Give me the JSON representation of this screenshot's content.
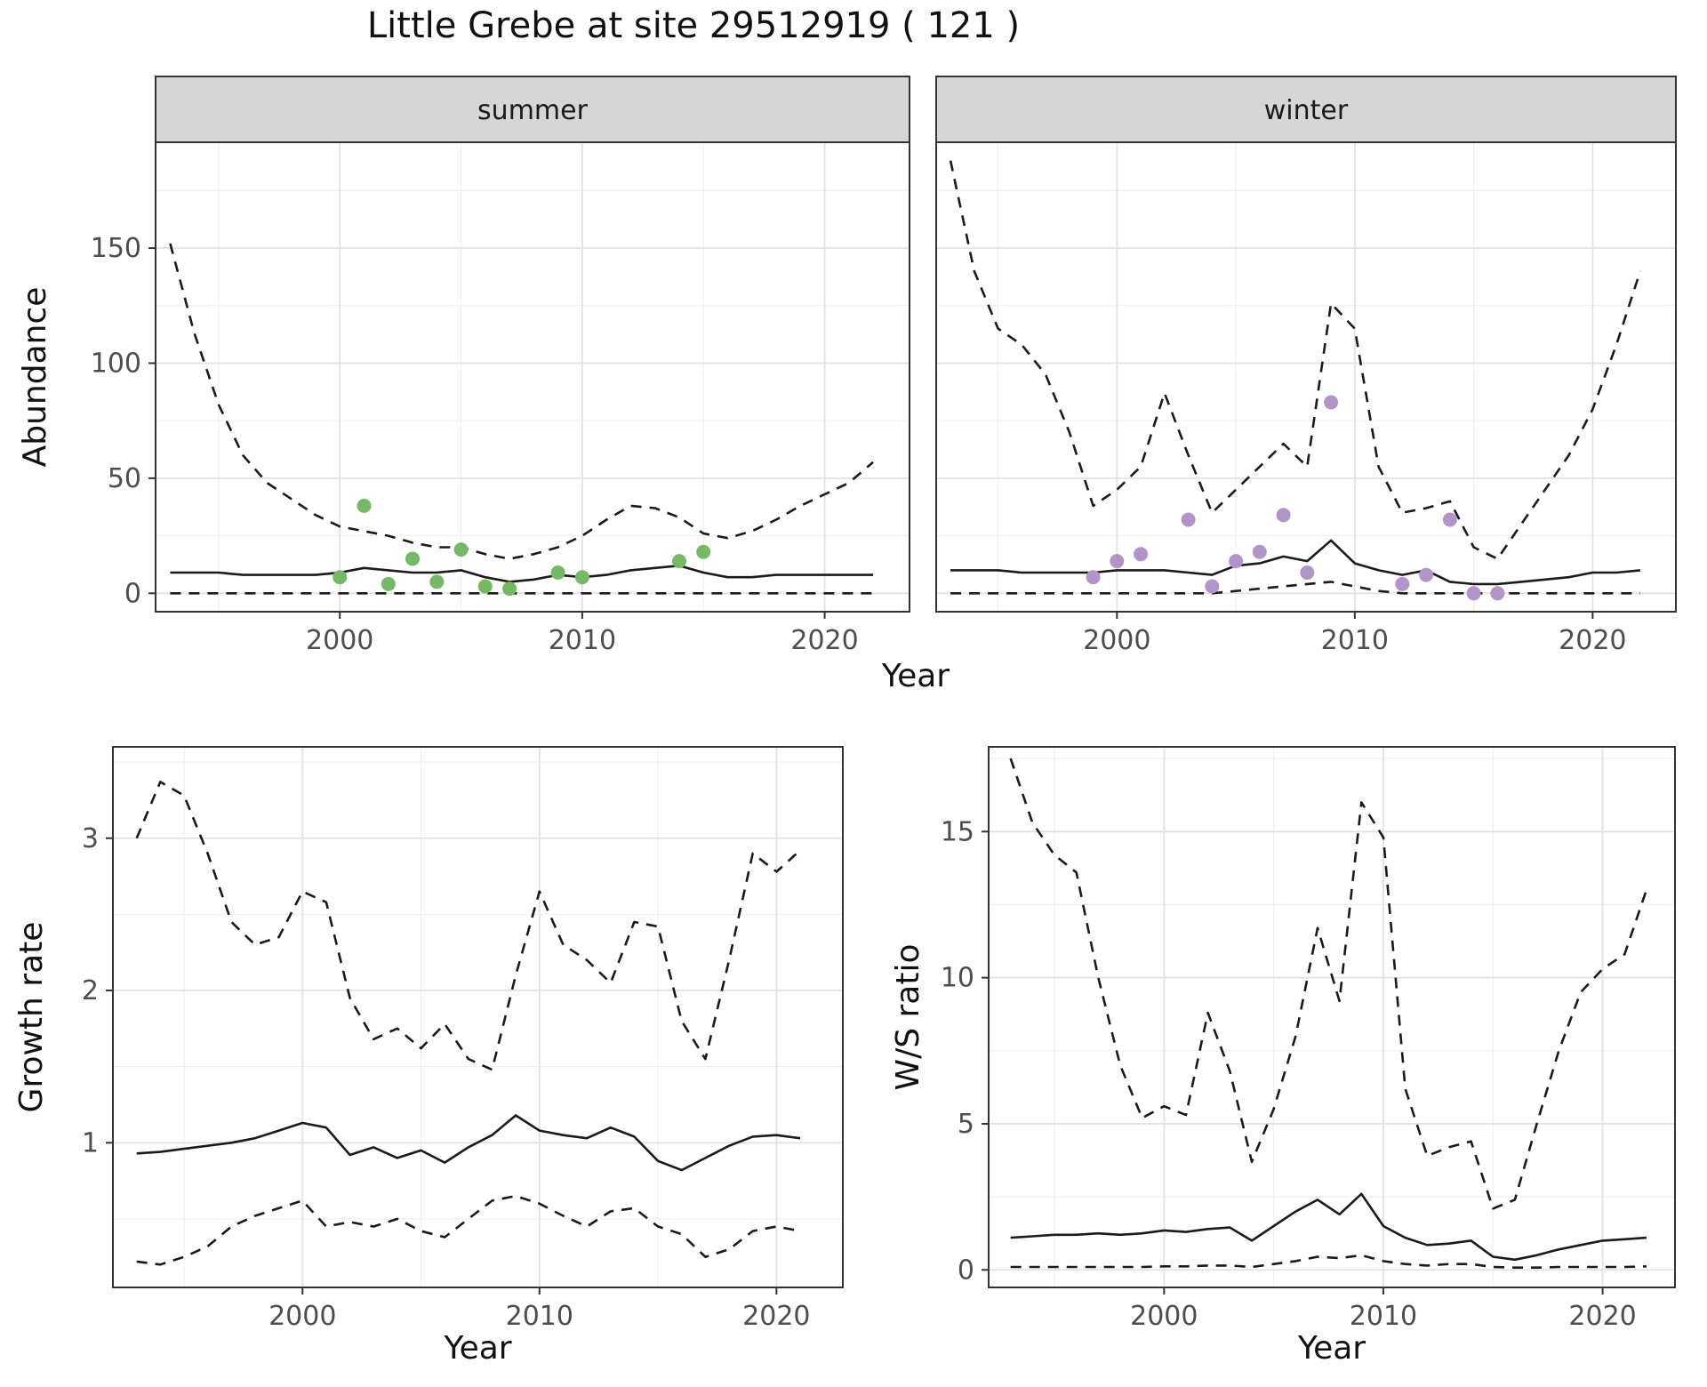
{
  "title": "Little Grebe at site 29512919 ( 121 )",
  "colors": {
    "line": "#1a1a1a",
    "grid_major": "#e2e2e2",
    "grid_minor": "#f0f0f0",
    "border": "#333333",
    "tick_text": "#4d4d4d",
    "strip_bg": "#d6d6d6",
    "strip_text": "#1a1a1a",
    "summer_points": "#76b965",
    "winter_points": "#b294c9"
  },
  "chart_data": [
    {
      "id": "summer",
      "type": "line",
      "facet_label": "summer",
      "xlabel": "Year",
      "ylabel": "Abundance",
      "xlim": [
        1992.4,
        2023.5
      ],
      "ylim": [
        -8,
        196
      ],
      "xticks": [
        2000,
        2010,
        2020
      ],
      "xtick_minor": [
        1995,
        2005,
        2015
      ],
      "yticks": [
        0,
        50,
        100,
        150
      ],
      "ytick_minor": [
        25,
        75,
        125,
        175
      ],
      "grid": true,
      "legend": "none",
      "x": [
        1993,
        1994,
        1995,
        1996,
        1997,
        1998,
        1999,
        2000,
        2001,
        2002,
        2003,
        2004,
        2005,
        2006,
        2007,
        2008,
        2009,
        2010,
        2011,
        2012,
        2013,
        2014,
        2015,
        2016,
        2017,
        2018,
        2019,
        2020,
        2021,
        2022
      ],
      "series": [
        {
          "name": "upper-ci",
          "style": "dashed",
          "values": [
            152,
            113,
            82,
            60,
            48,
            41,
            34,
            29,
            27,
            25,
            22,
            20,
            20,
            17,
            15,
            17,
            20,
            25,
            32,
            38,
            37,
            33,
            26,
            24,
            27,
            32,
            38,
            43,
            48,
            57
          ]
        },
        {
          "name": "median",
          "style": "solid",
          "values": [
            9,
            9,
            9,
            8,
            8,
            8,
            8,
            9,
            11,
            10,
            9,
            9,
            10,
            7,
            5,
            6,
            8,
            7,
            8,
            10,
            11,
            12,
            9,
            7,
            7,
            8,
            8,
            8,
            8,
            8
          ]
        },
        {
          "name": "lower-ci",
          "style": "dashed",
          "values": [
            0,
            0,
            0,
            0,
            0,
            0,
            0,
            0,
            0,
            0,
            0,
            0,
            0,
            0,
            0,
            0,
            0,
            0,
            0,
            0,
            0,
            0,
            0,
            0,
            0,
            0,
            0,
            0,
            0,
            0
          ]
        }
      ],
      "points": {
        "name": "observed-counts",
        "color_key": "summer_points",
        "x": [
          2000,
          2001,
          2002,
          2003,
          2004,
          2005,
          2006,
          2007,
          2009,
          2010,
          2014,
          2015
        ],
        "y": [
          7,
          38,
          4,
          15,
          5,
          19,
          3,
          2,
          9,
          7,
          14,
          18
        ]
      }
    },
    {
      "id": "winter",
      "type": "line",
      "facet_label": "winter",
      "xlabel": "Year",
      "ylabel": "Abundance",
      "xlim": [
        1992.4,
        2023.5
      ],
      "ylim": [
        -8,
        196
      ],
      "xticks": [
        2000,
        2010,
        2020
      ],
      "xtick_minor": [
        1995,
        2005,
        2015
      ],
      "yticks": [
        0,
        50,
        100,
        150
      ],
      "ytick_minor": [
        25,
        75,
        125,
        175
      ],
      "grid": true,
      "legend": "none",
      "x": [
        1993,
        1994,
        1995,
        1996,
        1997,
        1998,
        1999,
        2000,
        2001,
        2002,
        2003,
        2004,
        2005,
        2006,
        2007,
        2008,
        2009,
        2010,
        2011,
        2012,
        2013,
        2014,
        2015,
        2016,
        2017,
        2018,
        2019,
        2020,
        2021,
        2022
      ],
      "series": [
        {
          "name": "upper-ci",
          "style": "dashed",
          "values": [
            188,
            140,
            115,
            108,
            95,
            70,
            38,
            45,
            55,
            87,
            60,
            35,
            45,
            55,
            65,
            55,
            126,
            115,
            55,
            35,
            37,
            40,
            20,
            15,
            30,
            45,
            60,
            80,
            108,
            140
          ]
        },
        {
          "name": "median",
          "style": "solid",
          "values": [
            10,
            10,
            10,
            9,
            9,
            9,
            9,
            10,
            10,
            10,
            9,
            8,
            12,
            13,
            16,
            14,
            23,
            13,
            10,
            8,
            10,
            5,
            4,
            4,
            5,
            6,
            7,
            9,
            9,
            10
          ]
        },
        {
          "name": "lower-ci",
          "style": "dashed",
          "values": [
            0,
            0,
            0,
            0,
            0,
            0,
            0,
            0,
            0,
            0,
            0,
            0,
            1,
            2,
            3,
            4,
            5,
            3,
            1,
            0,
            0,
            0,
            0,
            0,
            0,
            0,
            0,
            0,
            0,
            0
          ]
        }
      ],
      "points": {
        "name": "observed-counts",
        "color_key": "winter_points",
        "x": [
          1999,
          2000,
          2001,
          2003,
          2004,
          2005,
          2006,
          2007,
          2008,
          2009,
          2012,
          2013,
          2014,
          2015,
          2016
        ],
        "y": [
          7,
          14,
          17,
          32,
          3,
          14,
          18,
          34,
          9,
          83,
          4,
          8,
          32,
          0,
          0
        ]
      }
    },
    {
      "id": "growth",
      "type": "line",
      "facet_label": "",
      "xlabel": "Year",
      "ylabel": "Growth rate",
      "xlim": [
        1992,
        2022.8
      ],
      "ylim": [
        0.05,
        3.6
      ],
      "xticks": [
        2000,
        2010,
        2020
      ],
      "xtick_minor": [
        1995,
        2005,
        2015
      ],
      "yticks": [
        1,
        2,
        3
      ],
      "ytick_minor": [
        0.5,
        1.5,
        2.5,
        3.5
      ],
      "grid": true,
      "legend": "none",
      "x": [
        1993,
        1994,
        1995,
        1996,
        1997,
        1998,
        1999,
        2000,
        2001,
        2002,
        2003,
        2004,
        2005,
        2006,
        2007,
        2008,
        2009,
        2010,
        2011,
        2012,
        2013,
        2014,
        2015,
        2016,
        2017,
        2018,
        2019,
        2020,
        2021
      ],
      "series": [
        {
          "name": "upper-ci",
          "style": "dashed",
          "values": [
            3.0,
            3.37,
            3.28,
            2.9,
            2.45,
            2.3,
            2.35,
            2.65,
            2.58,
            1.95,
            1.68,
            1.75,
            1.62,
            1.78,
            1.55,
            1.48,
            2.1,
            2.65,
            2.3,
            2.2,
            2.05,
            2.45,
            2.42,
            1.8,
            1.55,
            2.2,
            2.9,
            2.78,
            2.92
          ]
        },
        {
          "name": "median",
          "style": "solid",
          "values": [
            0.93,
            0.94,
            0.96,
            0.98,
            1.0,
            1.03,
            1.08,
            1.13,
            1.1,
            0.92,
            0.97,
            0.9,
            0.95,
            0.87,
            0.97,
            1.05,
            1.18,
            1.08,
            1.05,
            1.03,
            1.1,
            1.04,
            0.88,
            0.82,
            0.9,
            0.98,
            1.04,
            1.05,
            1.03
          ]
        },
        {
          "name": "lower-ci",
          "style": "dashed",
          "values": [
            0.22,
            0.2,
            0.25,
            0.32,
            0.45,
            0.52,
            0.57,
            0.62,
            0.45,
            0.48,
            0.45,
            0.5,
            0.42,
            0.38,
            0.5,
            0.62,
            0.65,
            0.6,
            0.52,
            0.45,
            0.55,
            0.57,
            0.45,
            0.4,
            0.25,
            0.3,
            0.42,
            0.45,
            0.42
          ]
        }
      ]
    },
    {
      "id": "ws",
      "type": "line",
      "facet_label": "",
      "xlabel": "Year",
      "ylabel": "W/S ratio",
      "xlim": [
        1992,
        2023.3
      ],
      "ylim": [
        -0.6,
        17.9
      ],
      "xticks": [
        2000,
        2010,
        2020
      ],
      "xtick_minor": [
        1995,
        2005,
        2015
      ],
      "yticks": [
        0,
        5,
        10,
        15
      ],
      "ytick_minor": [
        2.5,
        7.5,
        12.5,
        17.5
      ],
      "grid": true,
      "legend": "none",
      "x": [
        1993,
        1994,
        1995,
        1996,
        1997,
        1998,
        1999,
        2000,
        2001,
        2002,
        2003,
        2004,
        2005,
        2006,
        2007,
        2008,
        2009,
        2010,
        2011,
        2012,
        2013,
        2014,
        2015,
        2016,
        2017,
        2018,
        2019,
        2020,
        2021,
        2022
      ],
      "series": [
        {
          "name": "upper-ci",
          "style": "dashed",
          "values": [
            17.5,
            15.3,
            14.2,
            13.6,
            10.0,
            7.0,
            5.2,
            5.6,
            5.3,
            8.8,
            6.8,
            3.7,
            5.5,
            8.0,
            11.7,
            9.2,
            16.0,
            14.8,
            6.2,
            3.9,
            4.2,
            4.4,
            2.1,
            2.4,
            5.0,
            7.5,
            9.5,
            10.3,
            10.8,
            13.0
          ]
        },
        {
          "name": "median",
          "style": "solid",
          "values": [
            1.1,
            1.15,
            1.2,
            1.2,
            1.25,
            1.2,
            1.25,
            1.35,
            1.3,
            1.4,
            1.45,
            1.0,
            1.5,
            2.0,
            2.4,
            1.9,
            2.6,
            1.5,
            1.1,
            0.85,
            0.9,
            1.0,
            0.45,
            0.35,
            0.5,
            0.7,
            0.85,
            1.0,
            1.05,
            1.1
          ]
        },
        {
          "name": "lower-ci",
          "style": "dashed",
          "values": [
            0.1,
            0.1,
            0.1,
            0.1,
            0.1,
            0.1,
            0.1,
            0.12,
            0.12,
            0.15,
            0.15,
            0.1,
            0.2,
            0.3,
            0.45,
            0.4,
            0.5,
            0.3,
            0.2,
            0.15,
            0.2,
            0.2,
            0.1,
            0.08,
            0.08,
            0.1,
            0.1,
            0.1,
            0.1,
            0.12
          ]
        }
      ]
    }
  ]
}
